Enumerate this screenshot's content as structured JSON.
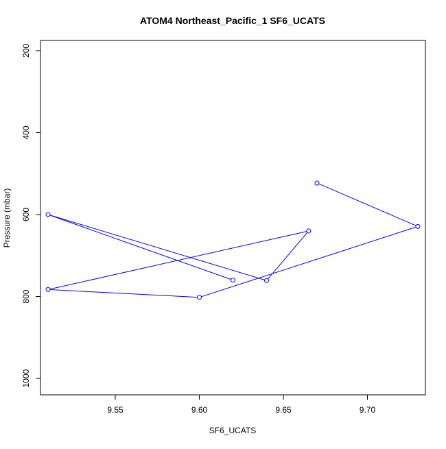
{
  "chart_data": {
    "type": "line",
    "title": "ATOM4 Northeast_Pacific_1 SF6_UCATS",
    "xlabel": "SF6_UCATS",
    "ylabel": "Pressure (mbar)",
    "xlim": [
      9.5055,
      9.7345
    ],
    "ylim": [
      1040,
      175
    ],
    "y_axis_reversed": true,
    "grid": false,
    "legend": "none",
    "x_ticks": [
      "9.55",
      "9.60",
      "9.65",
      "9.70"
    ],
    "y_ticks": [
      "200",
      "400",
      "600",
      "800",
      "1000"
    ],
    "x_tick_values": [
      9.55,
      9.6,
      9.65,
      9.7
    ],
    "y_tick_values": [
      200,
      400,
      600,
      800,
      1000
    ],
    "series": [
      {
        "color": "#0000ff",
        "marker": "open-circle",
        "points": [
          {
            "x": 9.67,
            "y": 523
          },
          {
            "x": 9.73,
            "y": 629
          },
          {
            "x": 9.6,
            "y": 802
          },
          {
            "x": 9.51,
            "y": 783
          },
          {
            "x": 9.665,
            "y": 640
          },
          {
            "x": 9.64,
            "y": 761
          },
          {
            "x": 9.51,
            "y": 600
          },
          {
            "x": 9.62,
            "y": 760
          }
        ]
      }
    ]
  }
}
